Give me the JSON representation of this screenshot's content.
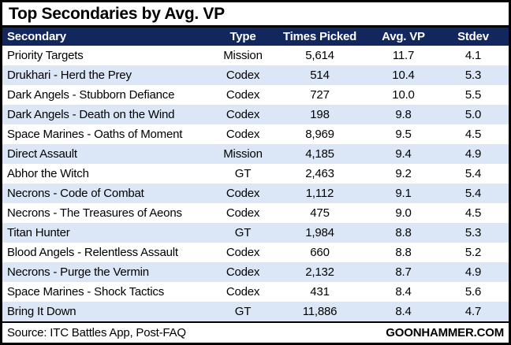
{
  "title": "Top Secondaries by Avg. VP",
  "colors": {
    "header_bg": "#12275E",
    "row_alt_bg": "#DBE7F6",
    "border": "#000000"
  },
  "table": {
    "headers": [
      "Secondary",
      "Type",
      "Times Picked",
      "Avg. VP",
      "Stdev"
    ],
    "rows": [
      {
        "secondary": "Priority Targets",
        "type": "Mission",
        "times_picked": "5,614",
        "avg_vp": "11.7",
        "stdev": "4.1"
      },
      {
        "secondary": "Drukhari - Herd the Prey",
        "type": "Codex",
        "times_picked": "514",
        "avg_vp": "10.4",
        "stdev": "5.3"
      },
      {
        "secondary": "Dark Angels - Stubborn Defiance",
        "type": "Codex",
        "times_picked": "727",
        "avg_vp": "10.0",
        "stdev": "5.5"
      },
      {
        "secondary": "Dark Angels - Death on the Wind",
        "type": "Codex",
        "times_picked": "198",
        "avg_vp": "9.8",
        "stdev": "5.0"
      },
      {
        "secondary": "Space Marines - Oaths of Moment",
        "type": "Codex",
        "times_picked": "8,969",
        "avg_vp": "9.5",
        "stdev": "4.5"
      },
      {
        "secondary": "Direct Assault",
        "type": "Mission",
        "times_picked": "4,185",
        "avg_vp": "9.4",
        "stdev": "4.9"
      },
      {
        "secondary": "Abhor the Witch",
        "type": "GT",
        "times_picked": "2,463",
        "avg_vp": "9.2",
        "stdev": "5.4"
      },
      {
        "secondary": "Necrons - Code of Combat",
        "type": "Codex",
        "times_picked": "1,112",
        "avg_vp": "9.1",
        "stdev": "5.4"
      },
      {
        "secondary": "Necrons - The Treasures of Aeons",
        "type": "Codex",
        "times_picked": "475",
        "avg_vp": "9.0",
        "stdev": "4.5"
      },
      {
        "secondary": "Titan Hunter",
        "type": "GT",
        "times_picked": "1,984",
        "avg_vp": "8.8",
        "stdev": "5.3"
      },
      {
        "secondary": "Blood Angels - Relentless Assault",
        "type": "Codex",
        "times_picked": "660",
        "avg_vp": "8.8",
        "stdev": "5.2"
      },
      {
        "secondary": "Necrons - Purge the Vermin",
        "type": "Codex",
        "times_picked": "2,132",
        "avg_vp": "8.7",
        "stdev": "4.9"
      },
      {
        "secondary": "Space Marines - Shock Tactics",
        "type": "Codex",
        "times_picked": "431",
        "avg_vp": "8.4",
        "stdev": "5.6"
      },
      {
        "secondary": "Bring It Down",
        "type": "GT",
        "times_picked": "11,886",
        "avg_vp": "8.4",
        "stdev": "4.7"
      }
    ]
  },
  "footer": {
    "source": "Source: ITC Battles App, Post-FAQ",
    "brand": "GOONHAMMER.COM"
  },
  "chart_data": {
    "type": "table",
    "title": "Top Secondaries by Avg. VP",
    "columns": [
      "Secondary",
      "Type",
      "Times Picked",
      "Avg. VP",
      "Stdev"
    ],
    "rows": [
      [
        "Priority Targets",
        "Mission",
        5614,
        11.7,
        4.1
      ],
      [
        "Drukhari - Herd the Prey",
        "Codex",
        514,
        10.4,
        5.3
      ],
      [
        "Dark Angels - Stubborn Defiance",
        "Codex",
        727,
        10.0,
        5.5
      ],
      [
        "Dark Angels - Death on the Wind",
        "Codex",
        198,
        9.8,
        5.0
      ],
      [
        "Space Marines - Oaths of Moment",
        "Codex",
        8969,
        9.5,
        4.5
      ],
      [
        "Direct Assault",
        "Mission",
        4185,
        9.4,
        4.9
      ],
      [
        "Abhor the Witch",
        "GT",
        2463,
        9.2,
        5.4
      ],
      [
        "Necrons - Code of Combat",
        "Codex",
        1112,
        9.1,
        5.4
      ],
      [
        "Necrons - The Treasures of Aeons",
        "Codex",
        475,
        9.0,
        4.5
      ],
      [
        "Titan Hunter",
        "GT",
        1984,
        8.8,
        5.3
      ],
      [
        "Blood Angels - Relentless Assault",
        "Codex",
        660,
        8.8,
        5.2
      ],
      [
        "Necrons - Purge the Vermin",
        "Codex",
        2132,
        8.7,
        4.9
      ],
      [
        "Space Marines - Shock Tactics",
        "Codex",
        431,
        8.4,
        5.6
      ],
      [
        "Bring It Down",
        "GT",
        11886,
        8.4,
        4.7
      ]
    ],
    "source": "Source: ITC Battles App, Post-FAQ",
    "brand": "GOONHAMMER.COM"
  }
}
